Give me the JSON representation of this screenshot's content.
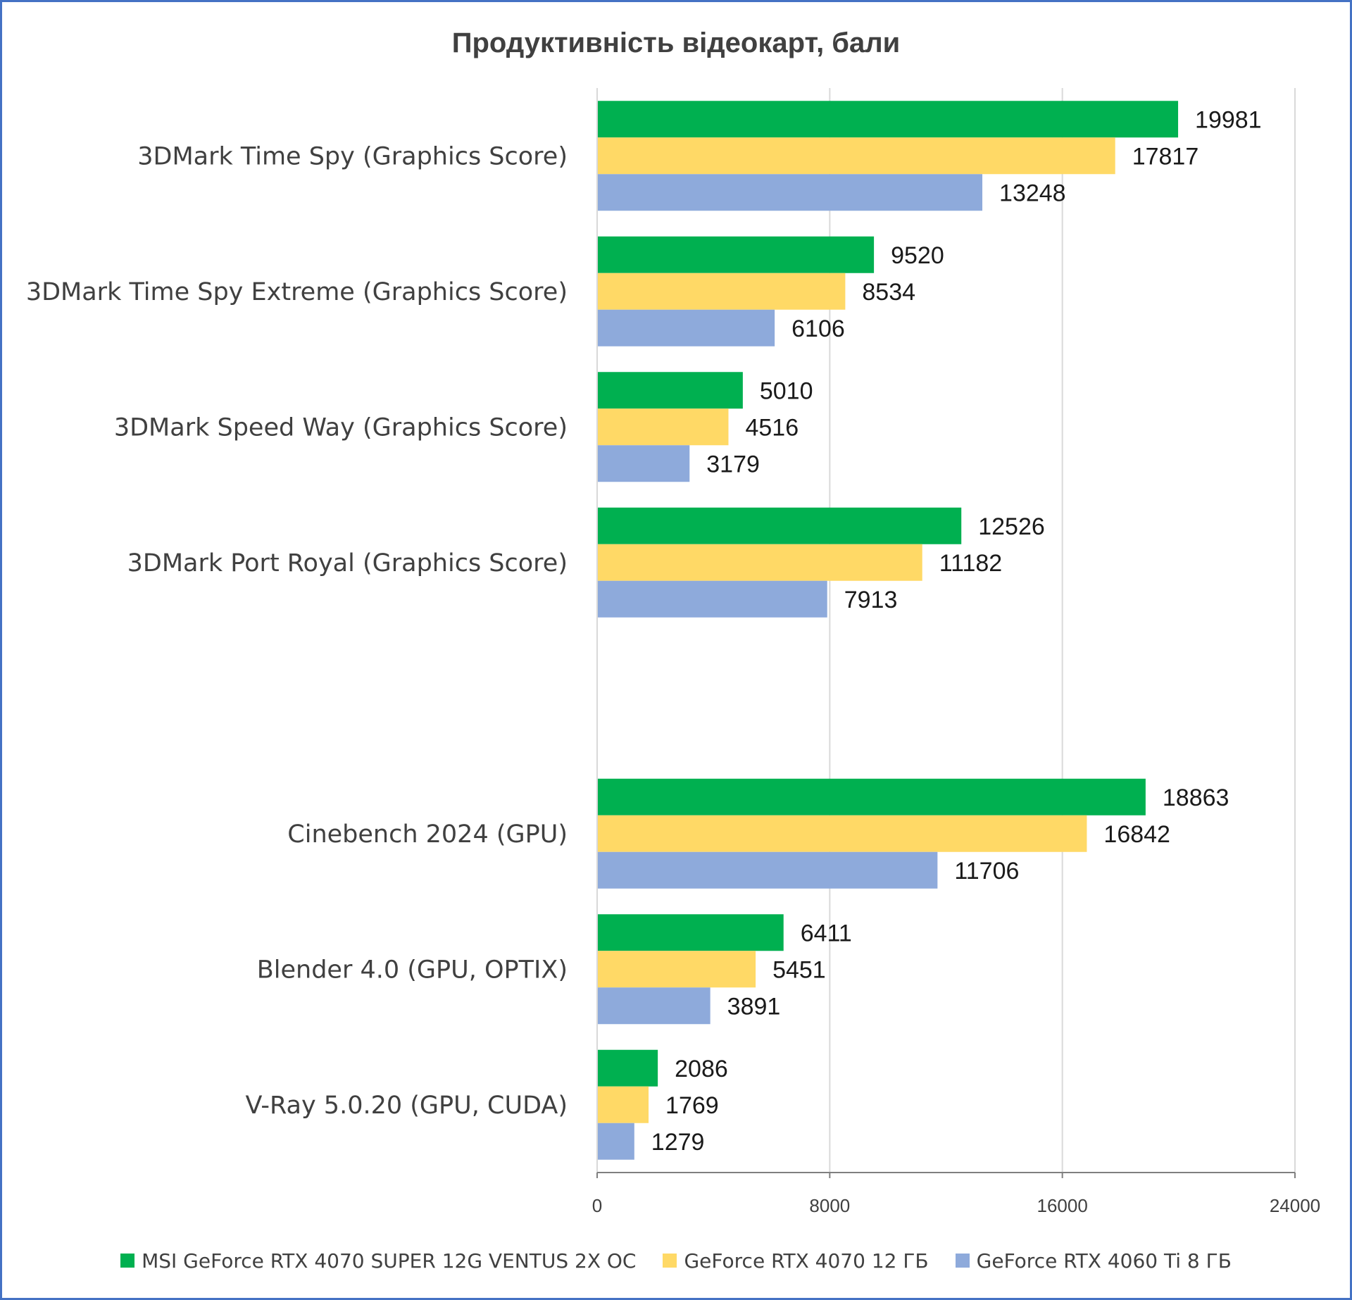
{
  "chart_data": {
    "type": "bar",
    "orientation": "horizontal",
    "title": "Продуктивність відеокарт, бали",
    "categories": [
      "3DMark Time Spy (Graphics Score)",
      "3DMark Time Spy Extreme (Graphics Score)",
      "3DMark Speed Way (Graphics Score)",
      "3DMark Port Royal (Graphics Score)",
      "",
      "Cinebench 2024 (GPU)",
      "Blender 4.0 (GPU, OPTIX)",
      "V-Ray 5.0.20 (GPU, CUDA)"
    ],
    "series": [
      {
        "name": "MSI GeForce RTX 4070 SUPER 12G VENTUS 2X OC",
        "color": "#00b050",
        "values": [
          19981,
          9520,
          5010,
          12526,
          null,
          18863,
          6411,
          2086
        ]
      },
      {
        "name": "GeForce RTX 4070 12 ГБ",
        "color": "#ffd966",
        "values": [
          17817,
          8534,
          4516,
          11182,
          null,
          16842,
          5451,
          1769
        ]
      },
      {
        "name": "GeForce RTX 4060 Ti 8 ГБ",
        "color": "#8eaadb",
        "values": [
          13248,
          6106,
          3179,
          7913,
          null,
          11706,
          3891,
          1279
        ]
      }
    ],
    "xlim": [
      0,
      24000
    ],
    "xticks": [
      "0",
      "8000",
      "16000",
      "24000"
    ],
    "xlabel": "",
    "ylabel": "",
    "grid": true,
    "legend": "bottom"
  }
}
